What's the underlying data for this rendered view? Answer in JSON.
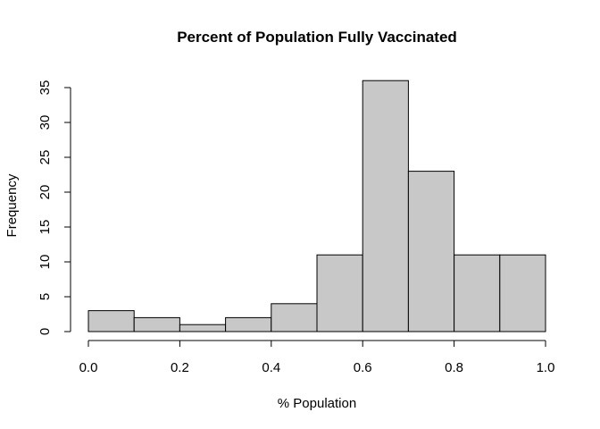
{
  "chart_data": {
    "type": "bar",
    "title": "Percent of Population Fully Vaccinated",
    "xlabel": "% Population",
    "ylabel": "Frequency",
    "bins": [
      {
        "start": 0.0,
        "end": 0.1,
        "value": 3
      },
      {
        "start": 0.1,
        "end": 0.2,
        "value": 2
      },
      {
        "start": 0.2,
        "end": 0.3,
        "value": 1
      },
      {
        "start": 0.3,
        "end": 0.4,
        "value": 2
      },
      {
        "start": 0.4,
        "end": 0.5,
        "value": 4
      },
      {
        "start": 0.5,
        "end": 0.6,
        "value": 11
      },
      {
        "start": 0.6,
        "end": 0.7,
        "value": 36
      },
      {
        "start": 0.7,
        "end": 0.8,
        "value": 23
      },
      {
        "start": 0.8,
        "end": 0.9,
        "value": 11
      },
      {
        "start": 0.9,
        "end": 1.0,
        "value": 11
      }
    ],
    "xlim": [
      0.0,
      1.0
    ],
    "ylim": [
      0,
      35
    ],
    "x_ticks": [
      "0.0",
      "0.2",
      "0.4",
      "0.6",
      "0.8",
      "1.0"
    ],
    "y_ticks": [
      "0",
      "5",
      "10",
      "15",
      "20",
      "25",
      "30",
      "35"
    ],
    "grid": false,
    "bar_color": "#c8c8c8"
  }
}
